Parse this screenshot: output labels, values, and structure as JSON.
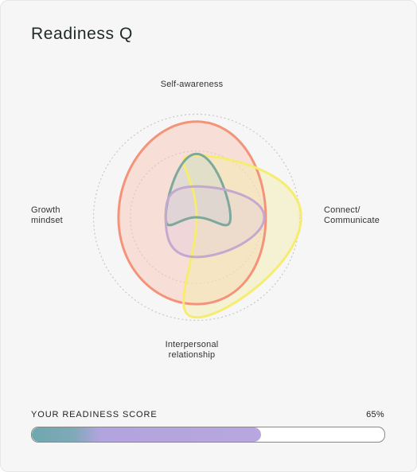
{
  "title": "Readiness Q",
  "chart_data": {
    "type": "radar",
    "axes": [
      "Self-awareness",
      "Connect/\nCommunicate",
      "Interpersonal\nrelationship",
      "Growth\nmindset"
    ],
    "range": [
      0,
      1
    ],
    "rings": [
      0.45,
      0.7
    ],
    "series": [
      {
        "values": [
          0.65,
          0.47,
          0.59,
          0.53
        ],
        "stroke": "#f4937a",
        "fill": "#f8c5b8",
        "fill_opacity": 0.5
      },
      {
        "values": [
          0.42,
          0.71,
          0.68,
          0.0
        ],
        "stroke": "#f5ec70",
        "fill": "#f3eeaa",
        "fill_opacity": 0.45
      },
      {
        "values": [
          0.43,
          0.23,
          0.0,
          0.21
        ],
        "stroke": "#7fa89c",
        "fill": "#c7d6cf",
        "fill_opacity": 0.45
      },
      {
        "values": [
          0.21,
          0.46,
          0.27,
          0.21
        ],
        "stroke": "#c5a8cf",
        "fill": "#dcc8de",
        "fill_opacity": 0.35
      }
    ]
  },
  "score": {
    "label": "YOUR READINESS SCORE",
    "value_text": "65%",
    "value": 0.65,
    "colors": [
      "#6fa8ae",
      "#b8a6df"
    ]
  }
}
